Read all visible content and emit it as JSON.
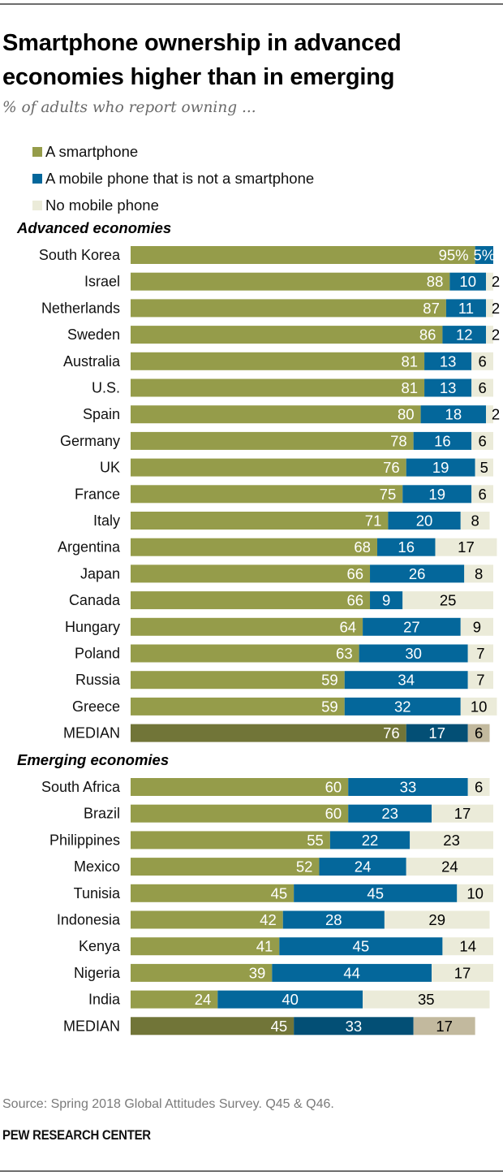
{
  "header": {
    "title": "Smartphone ownership in advanced economies higher than in emerging",
    "subtitle": "% of adults who report owning ..."
  },
  "legend": [
    {
      "label": "A smartphone",
      "color": "#959c4a"
    },
    {
      "label": "A mobile phone that is not a smartphone",
      "color": "#04679b"
    },
    {
      "label": "No mobile phone",
      "color": "#ebebd9"
    }
  ],
  "colors": {
    "smartphone": "#959c4a",
    "mobile": "#04679b",
    "none": "#ebebd9",
    "median_smartphone": "#717538",
    "median_mobile": "#034f75",
    "median_none": "#c2b99e",
    "label_light": "#ffffff",
    "label_dark": "#000000"
  },
  "footer": {
    "source": "Source: Spring 2018 Global Attitudes Survey. Q45 & Q46.",
    "brand": "PEW RESEARCH CENTER"
  },
  "chart_data": {
    "type": "bar",
    "orientation": "horizontal",
    "stacked": true,
    "title": "Smartphone ownership in advanced economies higher than in emerging",
    "subtitle": "% of adults who report owning ...",
    "xlabel": "",
    "ylabel": "",
    "xlim": [
      0,
      100
    ],
    "grid": false,
    "legend_position": "top-left",
    "series_names": [
      "A smartphone",
      "A mobile phone that is not a smartphone",
      "No mobile phone"
    ],
    "groups": [
      {
        "label": "Advanced economies",
        "rows": [
          {
            "country": "South Korea",
            "values": [
              95,
              5,
              0
            ],
            "labels": [
              "95%",
              "5%",
              ""
            ]
          },
          {
            "country": "Israel",
            "values": [
              88,
              10,
              2
            ],
            "labels": [
              "88",
              "10",
              "2"
            ]
          },
          {
            "country": "Netherlands",
            "values": [
              87,
              11,
              2
            ],
            "labels": [
              "87",
              "11",
              "2"
            ]
          },
          {
            "country": "Sweden",
            "values": [
              86,
              12,
              2
            ],
            "labels": [
              "86",
              "12",
              "2"
            ]
          },
          {
            "country": "Australia",
            "values": [
              81,
              13,
              6
            ],
            "labels": [
              "81",
              "13",
              "6"
            ]
          },
          {
            "country": "U.S.",
            "values": [
              81,
              13,
              6
            ],
            "labels": [
              "81",
              "13",
              "6"
            ]
          },
          {
            "country": "Spain",
            "values": [
              80,
              18,
              2
            ],
            "labels": [
              "80",
              "18",
              "2"
            ]
          },
          {
            "country": "Germany",
            "values": [
              78,
              16,
              6
            ],
            "labels": [
              "78",
              "16",
              "6"
            ]
          },
          {
            "country": "UK",
            "values": [
              76,
              19,
              5
            ],
            "labels": [
              "76",
              "19",
              "5"
            ]
          },
          {
            "country": "France",
            "values": [
              75,
              19,
              6
            ],
            "labels": [
              "75",
              "19",
              "6"
            ]
          },
          {
            "country": "Italy",
            "values": [
              71,
              20,
              8
            ],
            "labels": [
              "71",
              "20",
              "8"
            ]
          },
          {
            "country": "Argentina",
            "values": [
              68,
              16,
              17
            ],
            "labels": [
              "68",
              "16",
              "17"
            ]
          },
          {
            "country": "Japan",
            "values": [
              66,
              26,
              8
            ],
            "labels": [
              "66",
              "26",
              "8"
            ]
          },
          {
            "country": "Canada",
            "values": [
              66,
              9,
              25
            ],
            "labels": [
              "66",
              "9",
              "25"
            ]
          },
          {
            "country": "Hungary",
            "values": [
              64,
              27,
              9
            ],
            "labels": [
              "64",
              "27",
              "9"
            ]
          },
          {
            "country": "Poland",
            "values": [
              63,
              30,
              7
            ],
            "labels": [
              "63",
              "30",
              "7"
            ]
          },
          {
            "country": "Russia",
            "values": [
              59,
              34,
              7
            ],
            "labels": [
              "59",
              "34",
              "7"
            ]
          },
          {
            "country": "Greece",
            "values": [
              59,
              32,
              10
            ],
            "labels": [
              "59",
              "32",
              "10"
            ]
          },
          {
            "country": "MEDIAN",
            "values": [
              76,
              17,
              6
            ],
            "labels": [
              "76",
              "17",
              "6"
            ],
            "median": true
          }
        ]
      },
      {
        "label": "Emerging economies",
        "rows": [
          {
            "country": "South Africa",
            "values": [
              60,
              33,
              6
            ],
            "labels": [
              "60",
              "33",
              "6"
            ]
          },
          {
            "country": "Brazil",
            "values": [
              60,
              23,
              17
            ],
            "labels": [
              "60",
              "23",
              "17"
            ]
          },
          {
            "country": "Philippines",
            "values": [
              55,
              22,
              23
            ],
            "labels": [
              "55",
              "22",
              "23"
            ]
          },
          {
            "country": "Mexico",
            "values": [
              52,
              24,
              24
            ],
            "labels": [
              "52",
              "24",
              "24"
            ]
          },
          {
            "country": "Tunisia",
            "values": [
              45,
              45,
              10
            ],
            "labels": [
              "45",
              "45",
              "10"
            ]
          },
          {
            "country": "Indonesia",
            "values": [
              42,
              28,
              29
            ],
            "labels": [
              "42",
              "28",
              "29"
            ]
          },
          {
            "country": "Kenya",
            "values": [
              41,
              45,
              14
            ],
            "labels": [
              "41",
              "45",
              "14"
            ]
          },
          {
            "country": "Nigeria",
            "values": [
              39,
              44,
              17
            ],
            "labels": [
              "39",
              "44",
              "17"
            ]
          },
          {
            "country": "India",
            "values": [
              24,
              40,
              35
            ],
            "labels": [
              "24",
              "40",
              "35"
            ]
          },
          {
            "country": "MEDIAN",
            "values": [
              45,
              33,
              17
            ],
            "labels": [
              "45",
              "33",
              "17"
            ],
            "median": true
          }
        ]
      }
    ]
  }
}
